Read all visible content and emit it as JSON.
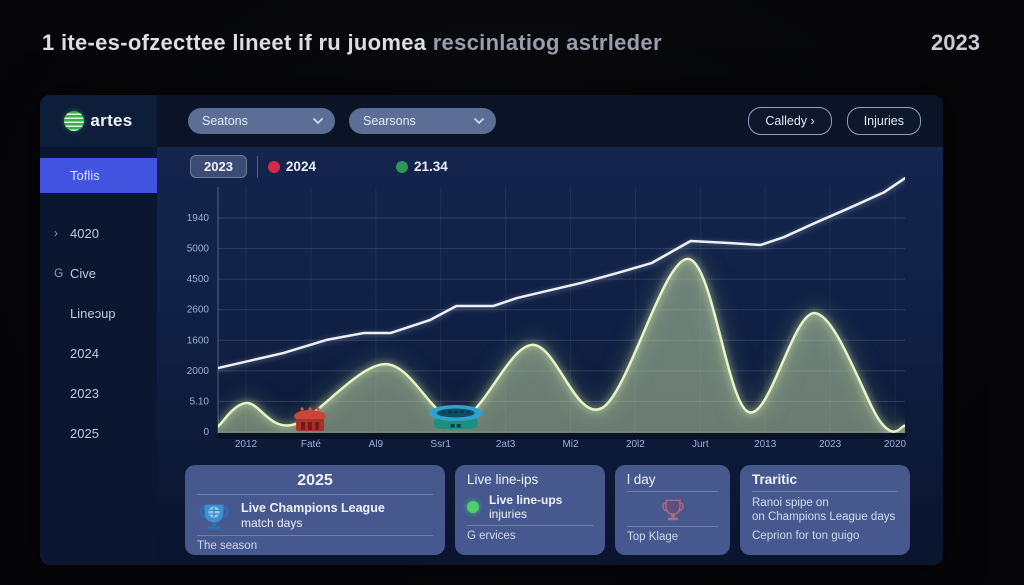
{
  "header": {
    "title_primary": "1 ite-es-ofzecttee lineet if ru juomea ",
    "title_secondary": "rescinlatiog astrleder",
    "year": "2023"
  },
  "topbar": {
    "logo_text": "artes",
    "dropdowns": [
      {
        "label": "Seatons"
      },
      {
        "label": "Searsons"
      }
    ],
    "buttons": [
      {
        "label": "Calledy ›"
      },
      {
        "label": "Injuries"
      }
    ]
  },
  "sidebar": {
    "items": [
      {
        "label": "Toflis",
        "active": true
      },
      {
        "label": "4020",
        "prefix": "›",
        "prefix_icon": "chevron-right-icon"
      },
      {
        "label": "Cive",
        "prefix": "G",
        "prefix_icon": "g-icon"
      },
      {
        "label": "Lineɔup"
      },
      {
        "label": "2024"
      },
      {
        "label": "2023"
      },
      {
        "label": "2025"
      }
    ]
  },
  "chart_data": {
    "type": "line+area",
    "legend": [
      {
        "label": "2023",
        "style": "pill"
      },
      {
        "label": "2024",
        "color": "#d5294a"
      },
      {
        "label": "21.34",
        "color": "#2f9655"
      }
    ],
    "y_ticks": [
      "1940",
      "5000",
      "4500",
      "2600",
      "1600",
      "2000",
      "5.10",
      "0"
    ],
    "x_ticks": [
      "2012",
      "Faté",
      "Al9",
      "Ssr1",
      "2at3",
      "Mi2",
      "20l2",
      "Jurt",
      "2013",
      "2023",
      "2020"
    ],
    "grid": true,
    "legend_position": "top-left",
    "series": [
      {
        "name": "season-trend",
        "type": "line",
        "color": "#edf0f4",
        "points": [
          [
            0,
            0.247
          ],
          [
            0.095,
            0.304
          ],
          [
            0.158,
            0.354
          ],
          [
            0.212,
            0.38
          ],
          [
            0.251,
            0.38
          ],
          [
            0.309,
            0.43
          ],
          [
            0.347,
            0.483
          ],
          [
            0.401,
            0.483
          ],
          [
            0.435,
            0.513
          ],
          [
            0.485,
            0.544
          ],
          [
            0.528,
            0.57
          ],
          [
            0.581,
            0.608
          ],
          [
            0.631,
            0.646
          ],
          [
            0.688,
            0.73
          ],
          [
            0.747,
            0.722
          ],
          [
            0.79,
            0.715
          ],
          [
            0.824,
            0.745
          ],
          [
            0.872,
            0.802
          ],
          [
            0.922,
            0.859
          ],
          [
            0.97,
            0.916
          ],
          [
            1,
            0.969
          ]
        ]
      },
      {
        "name": "match-wave",
        "type": "area",
        "line_color": "#e9f4c6",
        "fill_color": "rgba(202,223,172,0.5)",
        "points": [
          [
            0,
            0.025
          ],
          [
            0.042,
            0.114
          ],
          [
            0.11,
            0.032
          ],
          [
            0.243,
            0.262
          ],
          [
            0.35,
            0.05
          ],
          [
            0.457,
            0.335
          ],
          [
            0.559,
            0.095
          ],
          [
            0.684,
            0.662
          ],
          [
            0.772,
            0.08
          ],
          [
            0.869,
            0.456
          ],
          [
            0.965,
            0.04
          ],
          [
            1,
            0.028
          ]
        ]
      }
    ],
    "markers": [
      {
        "name": "stadium-red-icon",
        "x": 0.134
      },
      {
        "name": "stadium-blue-icon",
        "x": 0.346
      }
    ]
  },
  "cards": [
    {
      "title": "2025",
      "icon": "trophy-shield-blue-icon",
      "line1": "Live Champions League",
      "line2": "match days",
      "footer": "The season"
    },
    {
      "title": "Live line-ips",
      "dot_color": "#4bd06b",
      "line1": "Live line-ups",
      "line2": "injuries",
      "footer": "G ervices"
    },
    {
      "title": "l day",
      "icon": "trophy-outline-icon",
      "footer": "Top Klage"
    },
    {
      "title": "Traritic",
      "line1": "Ranoi spipe on",
      "line2": "on Champions League days",
      "footer": "Ceprion for ton guigo"
    }
  ]
}
